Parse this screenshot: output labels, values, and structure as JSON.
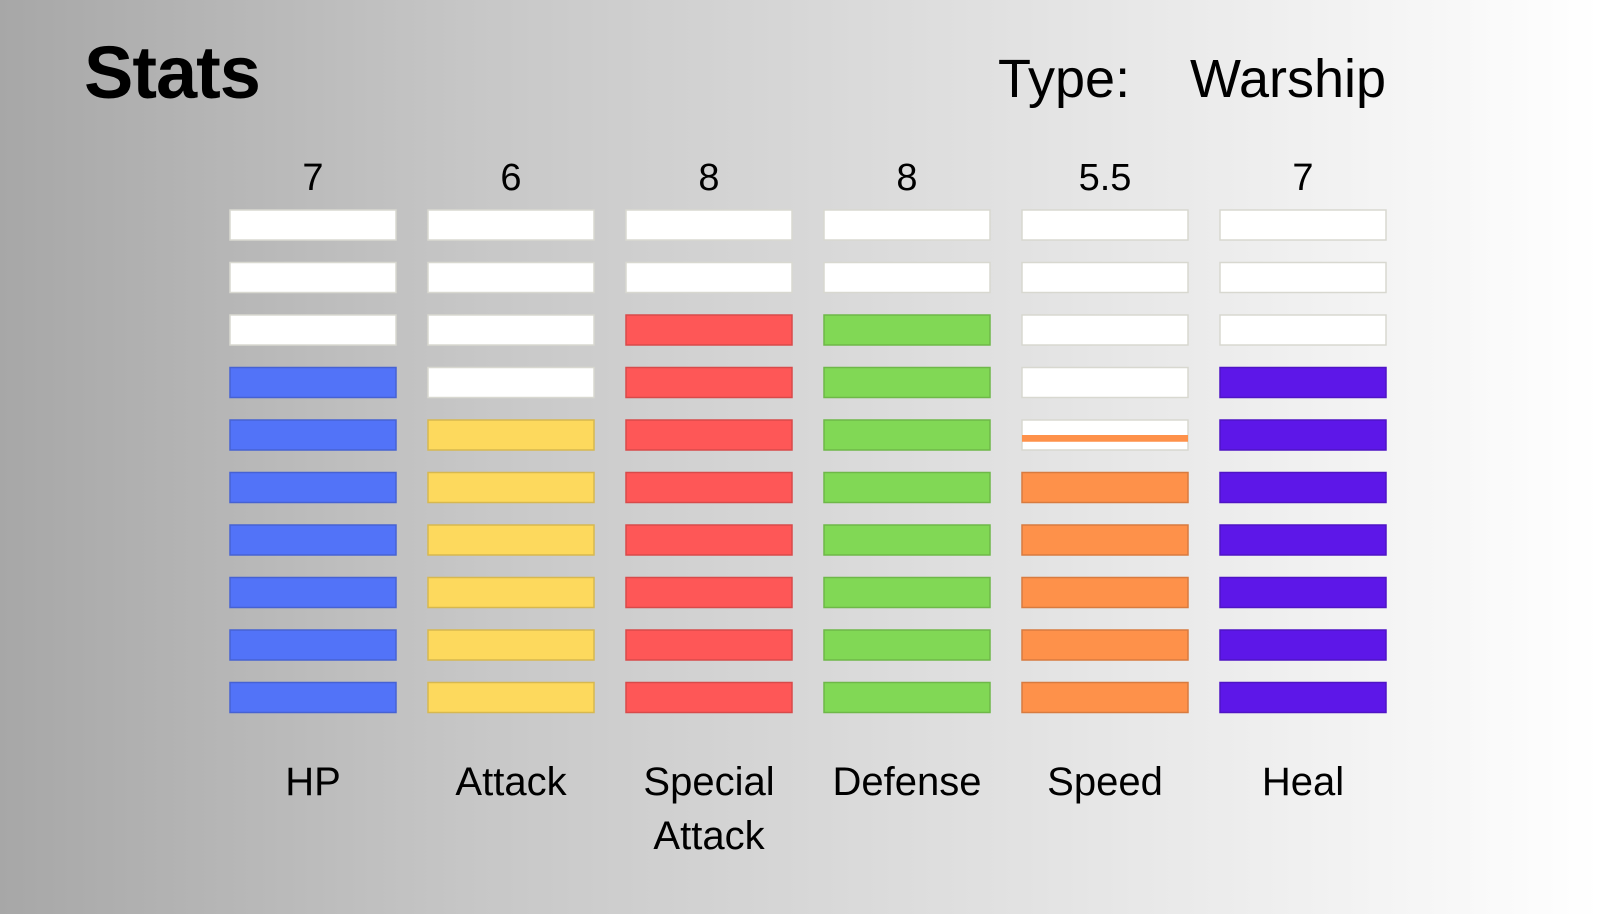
{
  "header": {
    "title": "Stats",
    "type_label": "Type:",
    "type_value": "Warship"
  },
  "chart_data": {
    "type": "bar",
    "segments_per_bar": 10,
    "empty_color": "#ffffff",
    "categories": [
      {
        "name": "HP",
        "label_lines": [
          "HP"
        ],
        "value": 7,
        "display": "7",
        "color": "#5273f8"
      },
      {
        "name": "Attack",
        "label_lines": [
          "Attack"
        ],
        "value": 6,
        "display": "6",
        "color": "#fdd95d"
      },
      {
        "name": "Special Attack",
        "label_lines": [
          "Special",
          "Attack"
        ],
        "value": 8,
        "display": "8",
        "color": "#fe5757"
      },
      {
        "name": "Defense",
        "label_lines": [
          "Defense"
        ],
        "value": 8,
        "display": "8",
        "color": "#81d855"
      },
      {
        "name": "Speed",
        "label_lines": [
          "Speed"
        ],
        "value": 5.5,
        "display": "5.5",
        "color": "#fe914a"
      },
      {
        "name": "Heal",
        "label_lines": [
          "Heal"
        ],
        "value": 7,
        "display": "7",
        "color": "#5d17e8"
      }
    ]
  }
}
